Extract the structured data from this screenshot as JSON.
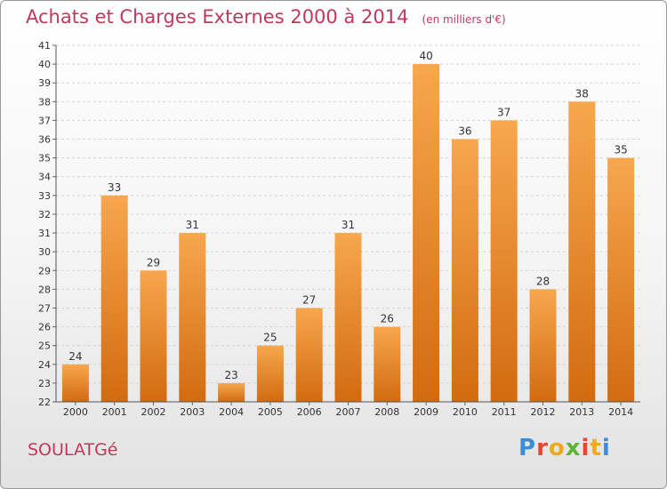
{
  "header": {
    "title": "Achats et Charges Externes 2000 à 2014",
    "unit": "(en milliers d'€)"
  },
  "footer": {
    "town": "SOULATGé",
    "logo_letters": [
      "P",
      "r",
      "o",
      "x",
      "i",
      "t",
      "i"
    ],
    "logo_colors": [
      "#3a8fd8",
      "#e8442e",
      "#f0a81c",
      "#5cb533",
      "#e8442e",
      "#f0a81c",
      "#3a8fd8"
    ]
  },
  "chart_data": {
    "type": "bar",
    "categories": [
      "2000",
      "2001",
      "2002",
      "2003",
      "2004",
      "2005",
      "2006",
      "2007",
      "2008",
      "2009",
      "2010",
      "2011",
      "2012",
      "2013",
      "2014"
    ],
    "values": [
      24,
      33,
      29,
      31,
      23,
      25,
      27,
      31,
      26,
      40,
      36,
      37,
      28,
      38,
      35
    ],
    "ylim": [
      22,
      41
    ],
    "yticks": [
      22,
      23,
      24,
      25,
      26,
      27,
      28,
      29,
      30,
      31,
      32,
      33,
      34,
      35,
      36,
      37,
      38,
      39,
      40,
      41
    ],
    "grid": true,
    "bar_color_light": "#f7a74e",
    "bar_color_dark": "#d26b10"
  }
}
